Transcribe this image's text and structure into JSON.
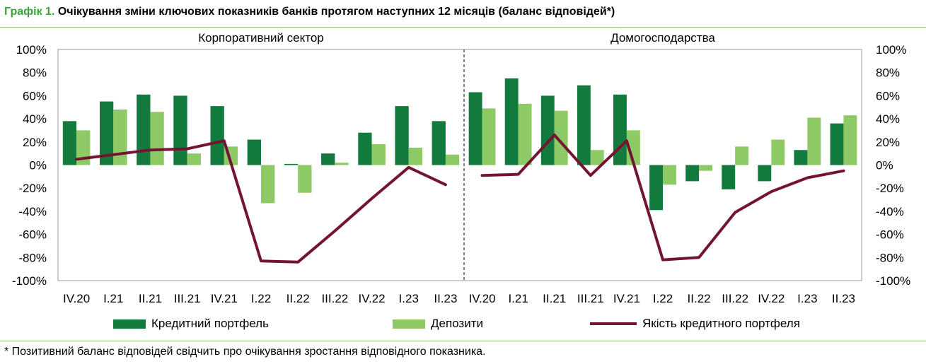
{
  "title": {
    "lead": "Графік 1.",
    "text": "Очікування зміни ключових показників банків протягом наступних 12 місяців (баланс відповідей*)"
  },
  "footnote": "* Позитивний баланс відповідей свідчить про очікування зростання відповідного показника.",
  "legend": {
    "credit": "Кредитний портфель",
    "deposits": "Депозити",
    "quality": "Якість кредитного портфеля"
  },
  "colors": {
    "credit": "#127a3c",
    "deposits": "#8dc965",
    "quality": "#731433",
    "rule": "#8cc07a",
    "title_lead": "#3aa33a"
  },
  "chart_data": [
    {
      "type": "bar",
      "title": "Корпоративний сектор",
      "categories": [
        "IV.20",
        "I.21",
        "II.21",
        "III.21",
        "IV.21",
        "I.22",
        "II.22",
        "III.22",
        "IV.22",
        "I.23",
        "II.23"
      ],
      "ylim": [
        -100,
        100
      ],
      "yticks": [
        "-100%",
        "-80%",
        "-60%",
        "-40%",
        "-20%",
        "0%",
        "20%",
        "40%",
        "60%",
        "80%",
        "100%"
      ],
      "grid": false,
      "series": [
        {
          "name": "Кредитний портфель",
          "type": "bar",
          "values": [
            38,
            55,
            61,
            60,
            51,
            22,
            1,
            10,
            28,
            51,
            38
          ]
        },
        {
          "name": "Депозити",
          "type": "bar",
          "values": [
            30,
            48,
            46,
            10,
            16,
            -33,
            -24,
            2,
            18,
            15,
            9
          ]
        },
        {
          "name": "Якість кредитного портфеля",
          "type": "line",
          "values": [
            5,
            9,
            13,
            14,
            21,
            -83,
            -84,
            -57,
            -29,
            -2,
            -17
          ]
        }
      ]
    },
    {
      "type": "bar",
      "title": "Домогосподарства",
      "categories": [
        "IV.20",
        "I.21",
        "II.21",
        "III.21",
        "IV.21",
        "I.22",
        "II.22",
        "III.22",
        "IV.22",
        "I.23",
        "II.23"
      ],
      "ylim": [
        -100,
        100
      ],
      "yticks": [
        "-100%",
        "-80%",
        "-60%",
        "-40%",
        "-20%",
        "0%",
        "20%",
        "40%",
        "60%",
        "80%",
        "100%"
      ],
      "grid": false,
      "series": [
        {
          "name": "Кредитний портфель",
          "type": "bar",
          "values": [
            63,
            75,
            60,
            69,
            61,
            -39,
            -14,
            -21,
            -14,
            13,
            36
          ]
        },
        {
          "name": "Депозити",
          "type": "bar",
          "values": [
            49,
            53,
            47,
            13,
            30,
            -17,
            -5,
            16,
            22,
            41,
            43
          ]
        },
        {
          "name": "Якість кредитного портфеля",
          "type": "line",
          "values": [
            -9,
            -8,
            26,
            -9,
            21,
            -82,
            -80,
            -41,
            -23,
            -11,
            -5
          ]
        }
      ]
    }
  ]
}
